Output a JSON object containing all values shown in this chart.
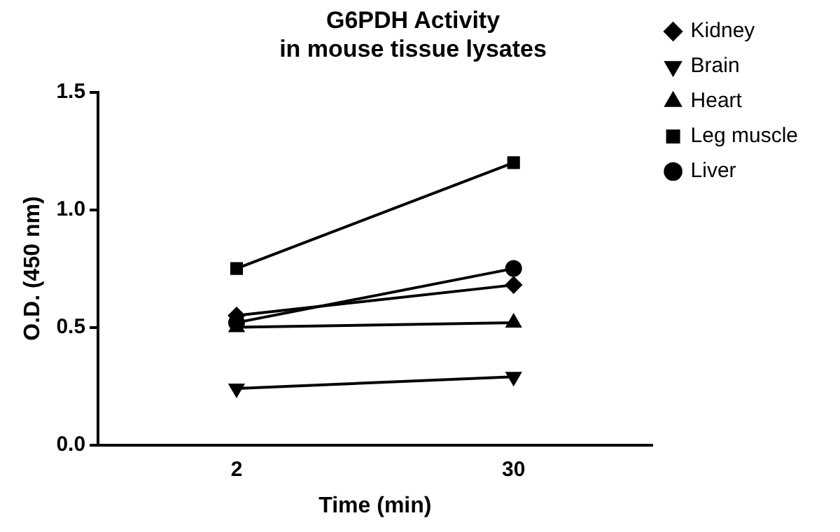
{
  "chart_data": {
    "type": "line",
    "title": "G6PDH Activity\nin mouse tissue lysates",
    "xlabel": "Time (min)",
    "ylabel": "O.D. (450 nm)",
    "categories": [
      "2",
      "30"
    ],
    "series": [
      {
        "name": "Kidney",
        "color": "#000000",
        "marker": "diamond",
        "values": [
          0.55,
          0.68
        ]
      },
      {
        "name": "Brain",
        "color": "#000000",
        "marker": "triangle_down",
        "values": [
          0.24,
          0.29
        ]
      },
      {
        "name": "Heart",
        "color": "#000000",
        "marker": "triangle",
        "values": [
          0.5,
          0.52
        ]
      },
      {
        "name": "Leg muscle",
        "color": "#000000",
        "marker": "square",
        "values": [
          0.75,
          1.2
        ]
      },
      {
        "name": "Liver",
        "color": "#000000",
        "marker": "circle",
        "values": [
          0.52,
          0.75
        ]
      }
    ],
    "ylim": [
      0,
      1.5
    ],
    "yticks": [
      {
        "value": 0,
        "label": "0.0"
      },
      0.5,
      {
        "value": 1,
        "label": "1.0"
      },
      1.5
    ],
    "grid": false,
    "legend": "right",
    "line_style": "solid"
  }
}
